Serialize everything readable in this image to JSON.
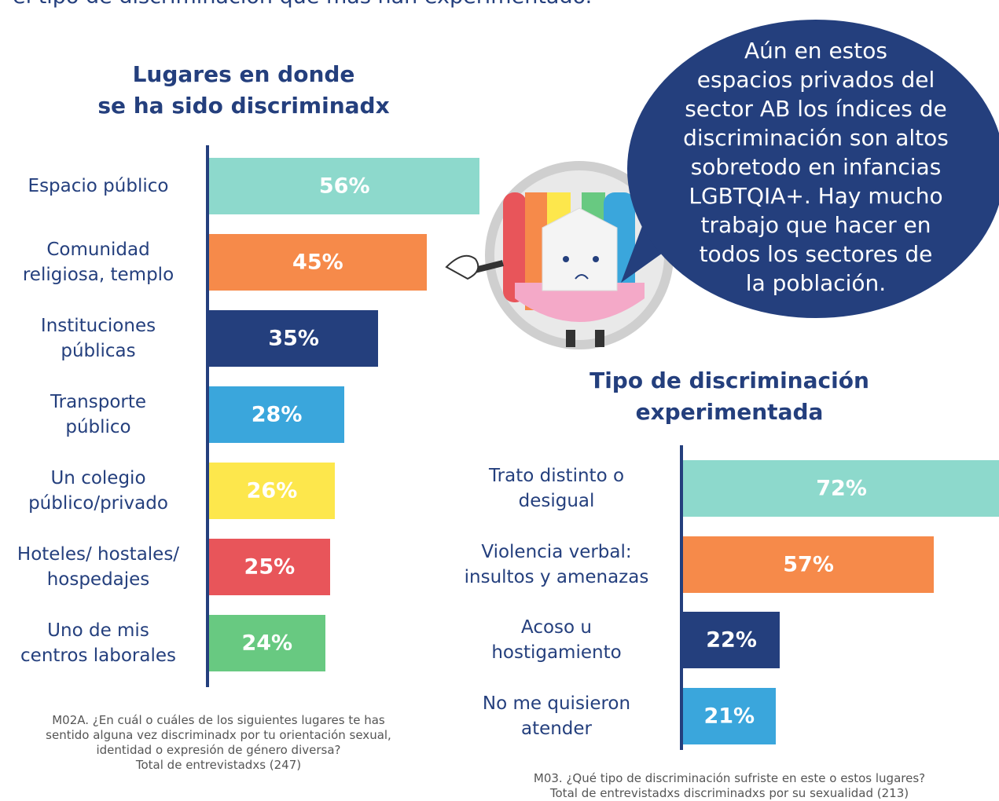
{
  "header_text": "el tipo de discriminación que más han experimentado.",
  "bubble_text": "Aún en estos\nespacios privados del\nsector AB los índices de\ndiscriminación son altos\nsobretodo en infancias\nLGBTQIA+. Hay mucho\ntrabajo que hacer en\ntodos los sectores de\nla población.",
  "chart_data": [
    {
      "type": "bar",
      "orientation": "horizontal",
      "title": "Lugares en donde\nse ha sido discriminadx",
      "categories": [
        "Espacio público",
        "Comunidad\nreligiosa, templo",
        "Instituciones\npúblicas",
        "Transporte\npúblico",
        "Un colegio\npúblico/privado",
        "Hoteles/ hostales/\nhospedajes",
        "Uno de mis\ncentros laborales"
      ],
      "values": [
        56,
        45,
        35,
        28,
        26,
        25,
        24
      ],
      "value_labels": [
        "56%",
        "45%",
        "35%",
        "28%",
        "26%",
        "25%",
        "24%"
      ],
      "colors": [
        "#8dd9cc",
        "#f68a4a",
        "#243f7d",
        "#3aa6dc",
        "#fde74c",
        "#e8555a",
        "#68c981"
      ],
      "note": "M02A. ¿En cuál o cuáles de los siguientes lugares te has\nsentido alguna vez discriminadx por tu orientación sexual,\nidentidad o expresión de género diversa?\nTotal de entrevistadxs (247)"
    },
    {
      "type": "bar",
      "orientation": "horizontal",
      "title": "Tipo de discriminación\nexperimentada",
      "categories": [
        "Trato distinto o\ndesigual",
        "Violencia verbal:\ninsultos y amenazas",
        "Acoso u\nhostigamiento",
        "No me quisieron\natender"
      ],
      "values": [
        72,
        57,
        22,
        21
      ],
      "value_labels": [
        "72%",
        "57%",
        "22%",
        "21%"
      ],
      "colors": [
        "#8dd9cc",
        "#f68a4a",
        "#243f7d",
        "#3aa6dc"
      ],
      "note": "M03. ¿Qué tipo de discriminación sufriste en este o estos lugares?\nTotal de entrevistadxs discriminadxs por su sexualidad (213)"
    }
  ]
}
